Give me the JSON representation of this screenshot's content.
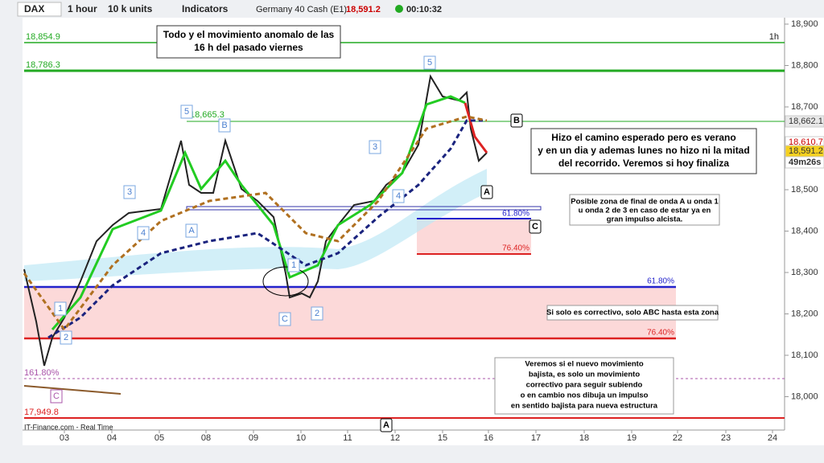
{
  "toolbar": {
    "symbol": "DAX",
    "timeframe": "1 hour",
    "units": "10 k units",
    "indicators": "Indicators",
    "instrument": "Germany 40 Cash (E1)",
    "price": "18,591.2",
    "timer": "00:10:32"
  },
  "period": "1h",
  "price_axis": [
    "18,900",
    "18,800",
    "18,700",
    "18,600",
    "18,500",
    "18,400",
    "18,300",
    "18,200",
    "18,100",
    "18,000"
  ],
  "price_badges": [
    "18,662.1",
    "18,610.7",
    "18,591.2",
    "49m26s"
  ],
  "date_axis": [
    "03",
    "04",
    "05",
    "08",
    "09",
    "10",
    "11",
    "12",
    "15",
    "16",
    "17",
    "18",
    "19",
    "22",
    "23",
    "24"
  ],
  "levels": {
    "high1": "18,854.9",
    "high2": "18,786.3",
    "peak": "18,665.3",
    "ext": "161.80%",
    "low": "17,949.8",
    "upper_618": "61.80%",
    "upper_764": "76.40%",
    "lower_618": "61.80%",
    "lower_764": "76.40%"
  },
  "waves": [
    "1",
    "2",
    "3",
    "4",
    "5",
    "A",
    "B",
    "C",
    "1",
    "2",
    "3",
    "4",
    "5",
    "A",
    "B",
    "C",
    "A",
    "C"
  ],
  "notes": {
    "title": [
      "Todo y el movimiento anomalo de las",
      "16 h del pasado viernes"
    ],
    "summary": [
      "Hizo el camino esperado pero es verano",
      "y en un dia y ademas lunes no hizo ni la mitad",
      "del recorrido. Veremos si hoy finaliza"
    ],
    "zone": [
      "Posible zona de final de onda A u onda 1",
      "u onda 2 de 3 en caso de estar ya en",
      "gran impulso alcista."
    ],
    "corrective": "Si solo es correctivo, solo ABC hasta esta zona",
    "bottom": [
      "Veremos si el nuevo movimiento",
      "bajista, es solo un movimiento",
      "correctivo para seguir subiendo",
      "o en cambio nos dibuja un impulso",
      "en sentido bajista para nueva estructura"
    ]
  },
  "footer": "IT-Finance.com - Real Time"
}
